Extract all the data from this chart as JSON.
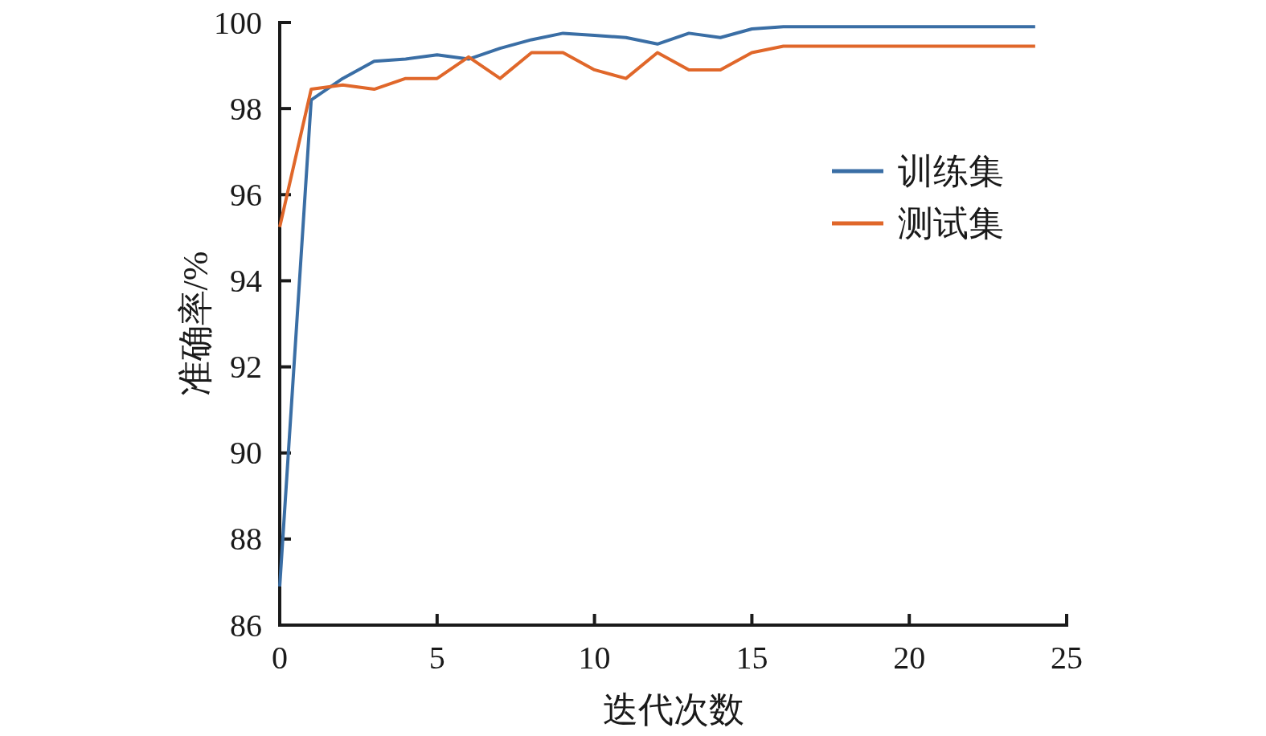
{
  "chart_data": {
    "type": "line",
    "xlabel": "迭代次数",
    "ylabel": "准确率/%",
    "x": [
      0,
      1,
      2,
      3,
      4,
      5,
      6,
      7,
      8,
      9,
      10,
      11,
      12,
      13,
      14,
      15,
      16,
      17,
      18,
      19,
      20,
      21,
      22,
      23,
      24
    ],
    "xlim": [
      0,
      25
    ],
    "ylim": [
      86,
      100
    ],
    "xticks": [
      0,
      5,
      10,
      15,
      20,
      25
    ],
    "yticks": [
      86,
      88,
      90,
      92,
      94,
      96,
      98,
      100
    ],
    "legend": "top right",
    "series": [
      {
        "name": "训练集",
        "color": "#3a6ea5",
        "values": [
          86.9,
          98.2,
          98.7,
          99.1,
          99.15,
          99.25,
          99.15,
          99.4,
          99.6,
          99.75,
          99.7,
          99.65,
          99.5,
          99.75,
          99.65,
          99.85,
          99.9,
          99.9,
          99.9,
          99.9,
          99.9,
          99.9,
          99.9,
          99.9,
          99.9
        ]
      },
      {
        "name": "测试集",
        "color": "#e0672a",
        "values": [
          95.25,
          98.45,
          98.55,
          98.45,
          98.7,
          98.7,
          99.2,
          98.7,
          99.3,
          99.3,
          98.9,
          98.7,
          99.3,
          98.9,
          98.9,
          99.3,
          99.45,
          99.45,
          99.45,
          99.45,
          99.45,
          99.45,
          99.45,
          99.45,
          99.45
        ]
      }
    ]
  }
}
